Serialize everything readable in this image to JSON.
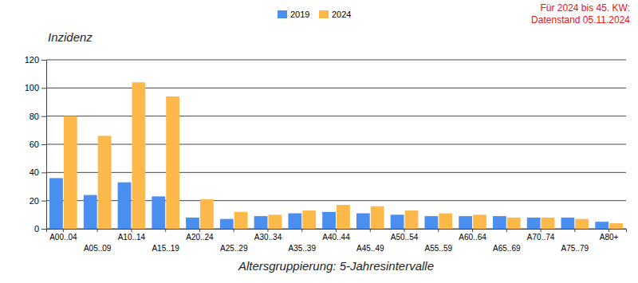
{
  "chart_data": {
    "type": "bar",
    "y_label": "Inzidenz",
    "x_label": "Altersgruppierung: 5-Jahresintervalle",
    "annotations": [
      "Für 2024 bis 45. KW:",
      "Datenstand 05.11.2024"
    ],
    "categories": [
      "A00..04",
      "A05..09",
      "A10..14",
      "A15..19",
      "A20..24",
      "A25..29",
      "A30..34",
      "A35..39",
      "A40..44",
      "A45..49",
      "A50..54",
      "A55..59",
      "A60..64",
      "A65..69",
      "A70..74",
      "A75..79",
      "A80+"
    ],
    "series": [
      {
        "name": "2019",
        "color": "#4a8ef0",
        "values": [
          36,
          24,
          33,
          23,
          8,
          7,
          9,
          11,
          12,
          11,
          10,
          9,
          9,
          9,
          8,
          8,
          5
        ]
      },
      {
        "name": "2024",
        "color": "#fdb84a",
        "values": [
          80,
          66,
          104,
          94,
          21,
          12,
          10,
          13,
          17,
          16,
          13,
          11,
          10,
          8,
          8,
          7,
          4
        ]
      }
    ],
    "ylim": [
      0,
      120
    ],
    "yticks": [
      0,
      20,
      40,
      60,
      80,
      100,
      120
    ],
    "grid": true,
    "legend": "top"
  }
}
